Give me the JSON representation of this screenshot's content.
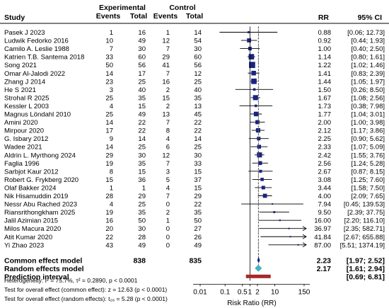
{
  "chart_data": {
    "type": "forest",
    "header": {
      "study": "Study",
      "experimental": "Experimental",
      "control": "Control",
      "events": "Events",
      "total": "Total",
      "rr": "RR",
      "ci": "95% CI"
    },
    "studies": [
      {
        "name": "Pasek J 2023",
        "e_events": 1,
        "e_total": 16,
        "c_events": 1,
        "c_total": 14,
        "rr": 0.88,
        "lo": 0.06,
        "hi": 12.73,
        "rr_text": "0.88",
        "ci_text": "[0.06; 12.73]",
        "weight": 1
      },
      {
        "name": "Ludwik Fedorko 2016",
        "e_events": 10,
        "e_total": 49,
        "c_events": 12,
        "c_total": 54,
        "rr": 0.92,
        "lo": 0.44,
        "hi": 1.93,
        "rr_text": "0.92",
        "ci_text": "[0.44;  1.93]",
        "weight": 4
      },
      {
        "name": "Camilo A. Leslie 1988",
        "e_events": 7,
        "e_total": 30,
        "c_events": 7,
        "c_total": 30,
        "rr": 1.0,
        "lo": 0.4,
        "hi": 2.5,
        "rr_text": "1.00",
        "ci_text": "[0.40;  2.50]",
        "weight": 3
      },
      {
        "name": "Katrien T.B. Santema 2018",
        "e_events": 33,
        "e_total": 60,
        "c_events": 29,
        "c_total": 60,
        "rr": 1.14,
        "lo": 0.8,
        "hi": 1.61,
        "rr_text": "1.14",
        "ci_text": "[0.80;  1.61]",
        "weight": 7
      },
      {
        "name": "Song 2021",
        "e_events": 50,
        "e_total": 56,
        "c_events": 41,
        "c_total": 56,
        "rr": 1.22,
        "lo": 1.02,
        "hi": 1.46,
        "rr_text": "1.22",
        "ci_text": "[1.02;  1.46]",
        "weight": 9
      },
      {
        "name": "Omar Al-Jalodi 2022",
        "e_events": 14,
        "e_total": 17,
        "c_events": 7,
        "c_total": 12,
        "rr": 1.41,
        "lo": 0.83,
        "hi": 2.39,
        "rr_text": "1.41",
        "ci_text": "[0.83;  2.39]",
        "weight": 5
      },
      {
        "name": "Zhang J 2014",
        "e_events": 23,
        "e_total": 25,
        "c_events": 16,
        "c_total": 25,
        "rr": 1.44,
        "lo": 1.05,
        "hi": 1.97,
        "rr_text": "1.44",
        "ci_text": "[1.05;  1.97]",
        "weight": 7
      },
      {
        "name": "He S 2021",
        "e_events": 3,
        "e_total": 40,
        "c_events": 2,
        "c_total": 40,
        "rr": 1.5,
        "lo": 0.26,
        "hi": 8.5,
        "rr_text": "1.50",
        "ci_text": "[0.26;  8.50]",
        "weight": 1.5
      },
      {
        "name": "Strohal R 2025",
        "e_events": 25,
        "e_total": 35,
        "c_events": 15,
        "c_total": 35,
        "rr": 1.67,
        "lo": 1.08,
        "hi": 2.56,
        "rr_text": "1.67",
        "ci_text": "[1.08;  2.56]",
        "weight": 6
      },
      {
        "name": "Kessler L 2003",
        "e_events": 4,
        "e_total": 15,
        "c_events": 2,
        "c_total": 13,
        "rr": 1.73,
        "lo": 0.38,
        "hi": 7.98,
        "rr_text": "1.73",
        "ci_text": "[0.38;  7.98]",
        "weight": 1.5
      },
      {
        "name": "Magnus Löndahl 2010",
        "e_events": 25,
        "e_total": 49,
        "c_events": 13,
        "c_total": 45,
        "rr": 1.77,
        "lo": 1.04,
        "hi": 3.01,
        "rr_text": "1.77",
        "ci_text": "[1.04;  3.01]",
        "weight": 5
      },
      {
        "name": "Amini 2020",
        "e_events": 14,
        "e_total": 22,
        "c_events": 7,
        "c_total": 22,
        "rr": 2.0,
        "lo": 1.0,
        "hi": 3.98,
        "rr_text": "2.00",
        "ci_text": "[1.00;  3.98]",
        "weight": 4
      },
      {
        "name": "Mirpour 2020",
        "e_events": 17,
        "e_total": 22,
        "c_events": 8,
        "c_total": 22,
        "rr": 2.12,
        "lo": 1.17,
        "hi": 3.86,
        "rr_text": "2.12",
        "ci_text": "[1.17;  3.86]",
        "weight": 4.5
      },
      {
        "name": "G. Isbary 2012",
        "e_events": 9,
        "e_total": 14,
        "c_events": 4,
        "c_total": 14,
        "rr": 2.25,
        "lo": 0.9,
        "hi": 5.62,
        "rr_text": "2.25",
        "ci_text": "[0.90;  5.62]",
        "weight": 3
      },
      {
        "name": "Wadee 2021",
        "e_events": 14,
        "e_total": 25,
        "c_events": 6,
        "c_total": 25,
        "rr": 2.33,
        "lo": 1.07,
        "hi": 5.09,
        "rr_text": "2.33",
        "ci_text": "[1.07;  5.09]",
        "weight": 3.5
      },
      {
        "name": "Aldrin L. Myrthong 2024",
        "e_events": 29,
        "e_total": 30,
        "c_events": 12,
        "c_total": 30,
        "rr": 2.42,
        "lo": 1.55,
        "hi": 3.76,
        "rr_text": "2.42",
        "ci_text": "[1.55;  3.76]",
        "weight": 6
      },
      {
        "name": "Faglia 1996",
        "e_events": 19,
        "e_total": 35,
        "c_events": 7,
        "c_total": 33,
        "rr": 2.56,
        "lo": 1.24,
        "hi": 5.28,
        "rr_text": "2.56",
        "ci_text": "[1.24;  5.28]",
        "weight": 3.5
      },
      {
        "name": "Sarbjot Kaur 2012",
        "e_events": 8,
        "e_total": 15,
        "c_events": 3,
        "c_total": 15,
        "rr": 2.67,
        "lo": 0.87,
        "hi": 8.15,
        "rr_text": "2.67",
        "ci_text": "[0.87;  8.15]",
        "weight": 2
      },
      {
        "name": "Robert G. Frykberg 2020",
        "e_events": 15,
        "e_total": 36,
        "c_events": 5,
        "c_total": 37,
        "rr": 3.08,
        "lo": 1.25,
        "hi": 7.6,
        "rr_text": "3.08",
        "ci_text": "[1.25;  7.60]",
        "weight": 2.5
      },
      {
        "name": "Olaf Bakker 2024",
        "e_events": 1,
        "e_total": 1,
        "c_events": 4,
        "c_total": 15,
        "rr": 3.44,
        "lo": 1.58,
        "hi": 7.5,
        "rr_text": "3.44",
        "ci_text": "[1.58;  7.50]",
        "weight": 3
      },
      {
        "name": "Nik Hisamuddin 2019",
        "e_events": 28,
        "e_total": 29,
        "c_events": 7,
        "c_total": 29,
        "rr": 4.0,
        "lo": 2.09,
        "hi": 7.65,
        "rr_text": "4.00",
        "ci_text": "[2.09;  7.65]",
        "weight": 4
      },
      {
        "name": "Nessr Abu Rached 2023",
        "e_events": 4,
        "e_total": 25,
        "c_events": 0,
        "c_total": 22,
        "rr": 7.94,
        "lo": 0.45,
        "hi": 139.53,
        "rr_text": "7.94",
        "ci_text": "[0.45; 139.53]",
        "weight": 0.5
      },
      {
        "name": "Riansrithongkham 2025",
        "e_events": 19,
        "e_total": 35,
        "c_events": 2,
        "c_total": 35,
        "rr": 9.5,
        "lo": 2.39,
        "hi": 37.75,
        "rr_text": "9.50",
        "ci_text": "[2.39;  37.75]",
        "weight": 1
      },
      {
        "name": "Jalil Azimian 2015",
        "e_events": 16,
        "e_total": 50,
        "c_events": 1,
        "c_total": 50,
        "rr": 16.0,
        "lo": 2.2,
        "hi": 116.1,
        "rr_text": "16.00",
        "ci_text": "[2.20; 116.10]",
        "weight": 0.6
      },
      {
        "name": "Milos Macura 2020",
        "e_events": 20,
        "e_total": 30,
        "c_events": 0,
        "c_total": 27,
        "rr": 36.97,
        "lo": 2.35,
        "hi": 582.71,
        "rr_text": "36.97",
        "ci_text": "[2.35; 582.71]",
        "weight": 0.5
      },
      {
        "name": "Atit Kumar 2020",
        "e_events": 22,
        "e_total": 28,
        "c_events": 0,
        "c_total": 26,
        "rr": 41.84,
        "lo": 2.67,
        "hi": 655.88,
        "rr_text": "41.84",
        "ci_text": "[2.67; 655.88]",
        "weight": 0.5
      },
      {
        "name": "Yi Zhao 2023",
        "e_events": 43,
        "e_total": 49,
        "c_events": 0,
        "c_total": 49,
        "rr": 87.0,
        "lo": 5.51,
        "hi": 1374.19,
        "rr_text": "87.00",
        "ci_text": "[5.51; 1374.19]",
        "weight": 0.5
      }
    ],
    "summary": {
      "common": {
        "label": "Common effect model",
        "e_total": 838,
        "c_total": 835,
        "rr": 2.23,
        "lo": 1.97,
        "hi": 2.52,
        "rr_text": "2.23",
        "ci_text": "[1.97;  2.52]"
      },
      "random": {
        "label": "Random effects model",
        "rr": 2.17,
        "lo": 1.61,
        "hi": 2.94,
        "rr_text": "2.17",
        "ci_text": "[1.61;  2.94]"
      },
      "prediction": {
        "label": "Prediction interval",
        "lo": 0.69,
        "hi": 6.81,
        "ci_text": "[0.69;  6.81]"
      }
    },
    "footnotes": [
      "Heterogeneity: I² = 75.7%, τ² = 0.2890, p < 0.0001",
      "Test for overall effect (common effect): z = 12.63 (p < 0.0001)",
      "Test for overall effect (random effects): t₂₆ = 5.28 (p < 0.0001)"
    ],
    "x_axis": {
      "scale": "log",
      "ticks": [
        0.01,
        0.1,
        0.5,
        1,
        2,
        10,
        150
      ],
      "tick_labels": [
        "0.01",
        "0.1",
        "0.5",
        "1",
        "2",
        "10",
        "150"
      ],
      "xlim": [
        0.01,
        150
      ],
      "label": "Risk Ratio (RR)"
    },
    "colors": {
      "square": "#1a237e",
      "line": "#000000",
      "common_diamond": "#1a237e",
      "random_diamond": "#3cb7c4",
      "prediction_bar": "#a52a2a",
      "rule": "#000000"
    }
  }
}
